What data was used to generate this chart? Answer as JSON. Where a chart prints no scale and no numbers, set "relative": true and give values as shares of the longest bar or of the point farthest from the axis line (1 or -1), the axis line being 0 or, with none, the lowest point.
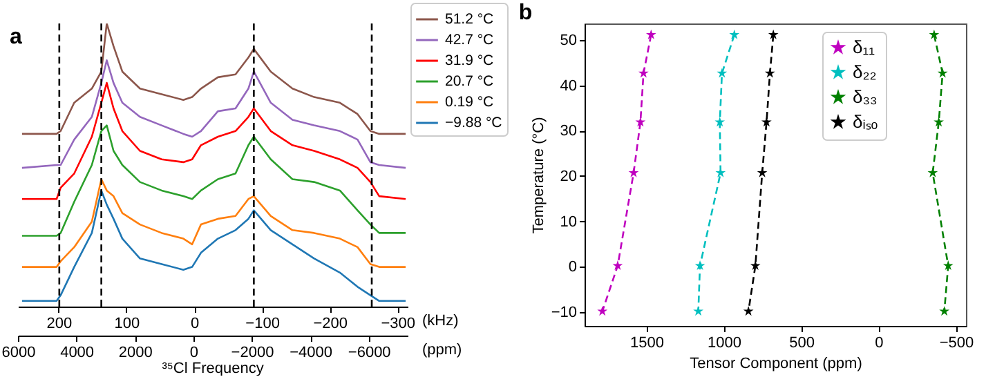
{
  "chart_data": [
    {
      "type": "line",
      "title": "a",
      "xlabel": "(kHz)",
      "x2label": "(ppm)",
      "annotations": [
        "³⁵Cl Frequency"
      ],
      "relative": true,
      "legend": "top right",
      "x": [
        254,
        203,
        197,
        177,
        151,
        137,
        129,
        119,
        106,
        80,
        48,
        16,
        3,
        -10,
        -35,
        -61,
        -80,
        -88,
        -113,
        -145,
        -177,
        -215,
        -241,
        -260,
        -273,
        -312
      ],
      "series": [
        {
          "name": "51.2 °C",
          "color": "#8c564b",
          "values": [
            0.61,
            0.61,
            0.62,
            0.72,
            0.77,
            0.83,
            1,
            0.92,
            0.83,
            0.77,
            0.75,
            0.73,
            0.74,
            0.77,
            0.81,
            0.82,
            0.88,
            0.91,
            0.83,
            0.77,
            0.74,
            0.72,
            0.68,
            0.62,
            0.61,
            0.61
          ]
        },
        {
          "name": "42.7 °C",
          "color": "#9467bd",
          "values": [
            0.49,
            0.5,
            0.5,
            0.59,
            0.67,
            0.79,
            0.87,
            0.79,
            0.72,
            0.67,
            0.64,
            0.61,
            0.6,
            0.62,
            0.69,
            0.7,
            0.77,
            0.83,
            0.72,
            0.66,
            0.64,
            0.62,
            0.59,
            0.51,
            0.5,
            0.49
          ]
        },
        {
          "name": "31.9 °C",
          "color": "#ff0000",
          "values": [
            0.38,
            0.38,
            0.42,
            0.47,
            0.6,
            0.72,
            0.79,
            0.7,
            0.62,
            0.55,
            0.52,
            0.51,
            0.52,
            0.57,
            0.6,
            0.62,
            0.67,
            0.7,
            0.62,
            0.57,
            0.55,
            0.52,
            0.49,
            0.44,
            0.39,
            0.38
          ]
        },
        {
          "name": "20.7 °C",
          "color": "#2ca02c",
          "values": [
            0.25,
            0.25,
            0.26,
            0.37,
            0.5,
            0.62,
            0.64,
            0.55,
            0.5,
            0.44,
            0.41,
            0.39,
            0.38,
            0.41,
            0.45,
            0.47,
            0.57,
            0.6,
            0.52,
            0.45,
            0.44,
            0.41,
            0.34,
            0.29,
            0.26,
            0.26
          ]
        },
        {
          "name": "0.19 °C",
          "color": "#ff7f0e",
          "values": [
            0.14,
            0.14,
            0.16,
            0.21,
            0.3,
            0.45,
            0.41,
            0.39,
            0.33,
            0.29,
            0.26,
            0.24,
            0.22,
            0.29,
            0.31,
            0.32,
            0.38,
            0.39,
            0.32,
            0.27,
            0.26,
            0.24,
            0.21,
            0.15,
            0.14,
            0.14
          ]
        },
        {
          "name": "−9.88 °C",
          "color": "#1f77b4",
          "values": [
            0.02,
            0.02,
            0.04,
            0.14,
            0.26,
            0.41,
            0.36,
            0.31,
            0.24,
            0.17,
            0.15,
            0.13,
            0.14,
            0.19,
            0.24,
            0.27,
            0.31,
            0.34,
            0.27,
            0.22,
            0.17,
            0.12,
            0.07,
            0.04,
            0.02,
            0.02
          ]
        }
      ],
      "xlim": [
        260,
        -315
      ],
      "xticks": [
        200,
        100,
        0,
        {
          "value": -100,
          "label": "−100"
        },
        {
          "value": -200,
          "label": "−200"
        },
        {
          "value": -300,
          "label": "−300"
        }
      ],
      "x2lim": [
        6000,
        -7330
      ],
      "x2ticks": [
        6000,
        4000,
        2000,
        0,
        {
          "value": -2000,
          "label": "−2000"
        },
        {
          "value": -4000,
          "label": "−4000"
        },
        {
          "value": -6000,
          "label": "−6000"
        }
      ],
      "ref_lines": [
        {
          "axis": "x",
          "value": 199,
          "line_style": "dashed",
          "color": "#000000"
        },
        {
          "axis": "x",
          "value": 137,
          "line_style": "dashed",
          "color": "#000000"
        },
        {
          "axis": "x",
          "value": -88,
          "line_style": "dashed",
          "color": "#000000"
        },
        {
          "axis": "x",
          "value": -262,
          "line_style": "dashed",
          "color": "#000000"
        }
      ]
    },
    {
      "type": "line",
      "title": "b",
      "xlabel": "Tensor Component (ppm)",
      "ylabel": "Temperature (°C)",
      "legend": "top right",
      "marker": "star",
      "line_style": "dashed",
      "series": [
        {
          "name": "δ₁₁",
          "color": "#bf00bf",
          "x": [
            1470,
            1519,
            1539,
            1583,
            1686,
            1785
          ],
          "values": [
            51.2,
            42.7,
            31.9,
            20.7,
            0.19,
            -9.88
          ]
        },
        {
          "name": "δ₂₂",
          "color": "#00bfbf",
          "x": [
            932,
            1012,
            1026,
            1021,
            1154,
            1165
          ],
          "values": [
            51.2,
            42.7,
            31.9,
            20.7,
            0.19,
            -9.88
          ]
        },
        {
          "name": "δ₃₃",
          "color": "#008000",
          "x": [
            -359,
            -414,
            -389,
            -350,
            -450,
            -425
          ],
          "values": [
            51.2,
            42.7,
            31.9,
            20.7,
            0.19,
            -9.88
          ]
        },
        {
          "name": "δᵢₛₒ",
          "color": "#000000",
          "x": [
            680,
            702,
            724,
            752,
            796,
            841
          ],
          "values": [
            51.2,
            42.7,
            31.9,
            20.7,
            0.19,
            -9.88
          ]
        }
      ],
      "xlim": [
        1900,
        -565
      ],
      "xticks": [
        1500,
        1000,
        500,
        0,
        {
          "value": -500,
          "label": "−500"
        }
      ],
      "ylim": [
        -13.1,
        53.7
      ],
      "yticks": [
        {
          "value": -10,
          "label": "−10"
        },
        0,
        10,
        20,
        30,
        40,
        50
      ]
    }
  ]
}
